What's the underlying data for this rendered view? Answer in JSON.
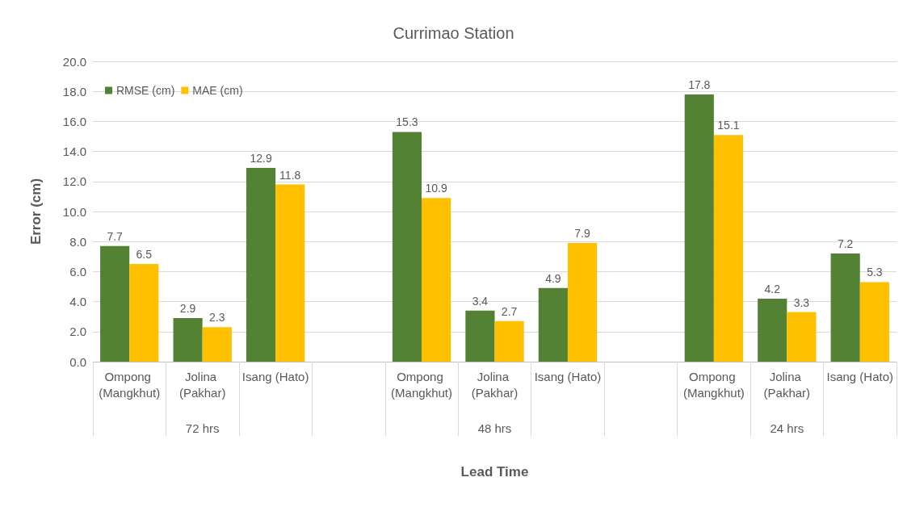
{
  "chart_data": {
    "type": "bar",
    "title": "Currimao Station",
    "xlabel": "Lead Time",
    "ylabel": "Error (cm)",
    "categories": [
      "Ompong (Mangkhut)",
      "Jolina (Pakhar)",
      "Isang (Hato)",
      null,
      "Ompong (Mangkhut)",
      "Jolina (Pakhar)",
      "Isang (Hato)",
      null,
      "Ompong (Mangkhut)",
      "Jolina (Pakhar)",
      "Isang (Hato)"
    ],
    "series": [
      {
        "name": "RMSE (cm)",
        "color": "#548235",
        "values": [
          7.7,
          2.9,
          12.9,
          null,
          15.3,
          3.4,
          4.9,
          null,
          17.8,
          4.2,
          7.2
        ]
      },
      {
        "name": "MAE (cm)",
        "color": "#ffc000",
        "values": [
          6.5,
          2.3,
          11.8,
          null,
          10.9,
          2.7,
          7.9,
          null,
          15.1,
          3.3,
          5.3
        ]
      }
    ],
    "annotations": [
      "72 hrs",
      "48 hrs",
      "24 hrs"
    ],
    "ylim": [
      0,
      20
    ],
    "yticks": [
      {
        "value": 0,
        "label": "0.0"
      },
      {
        "value": 2,
        "label": "2.0"
      },
      {
        "value": 4,
        "label": "4.0"
      },
      {
        "value": 6,
        "label": "6.0"
      },
      {
        "value": 8,
        "label": "8.0"
      },
      {
        "value": 10,
        "label": "10.0"
      },
      {
        "value": 12,
        "label": "12.0"
      },
      {
        "value": 14,
        "label": "14.0"
      },
      {
        "value": 16,
        "label": "16.0"
      },
      {
        "value": 18,
        "label": "18.0"
      },
      {
        "value": 20,
        "label": "20.0"
      }
    ],
    "grid": "y",
    "legend": "top left",
    "data_labels": true
  }
}
